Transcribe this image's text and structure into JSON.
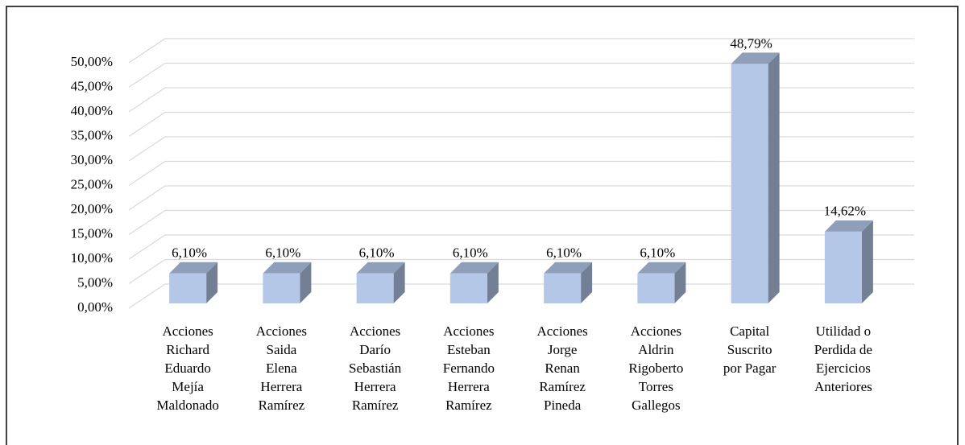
{
  "chart_data": {
    "type": "bar3d",
    "categories": [
      "Acciones\nRichard\nEduardo\nMejía\nMaldonado",
      "Acciones\nSaida\nElena\nHerrera\nRamírez",
      "Acciones\nDarío\nSebastián\nHerrera\nRamírez",
      "Acciones\nEsteban\nFernando\nHerrera\nRamírez",
      "Acciones\nJorge\nRenan\nRamírez\nPineda",
      "Acciones\nAldrin\nRigoberto\nTorres\nGallegos",
      "Capital\nSuscrito\npor Pagar",
      "Utilidad o\nPerdida de\nEjercicios\nAnteriores"
    ],
    "values": [
      6.1,
      6.1,
      6.1,
      6.1,
      6.1,
      6.1,
      48.79,
      14.62
    ],
    "value_labels": [
      "6,10%",
      "6,10%",
      "6,10%",
      "6,10%",
      "6,10%",
      "6,10%",
      "48,79%",
      "14,62%"
    ],
    "color": "#b4c7e7",
    "ylim": [
      0,
      50
    ],
    "yticks": [
      {
        "value": 0,
        "label": "0,00%"
      },
      {
        "value": 5,
        "label": "5,00%"
      },
      {
        "value": 10,
        "label": "10,00%"
      },
      {
        "value": 15,
        "label": "15,00%"
      },
      {
        "value": 20,
        "label": "20,00%"
      },
      {
        "value": 25,
        "label": "25,00%"
      },
      {
        "value": 30,
        "label": "30,00%"
      },
      {
        "value": 35,
        "label": "35,00%"
      },
      {
        "value": 40,
        "label": "40,00%"
      },
      {
        "value": 45,
        "label": "45,00%"
      },
      {
        "value": 50,
        "label": "50,00%"
      }
    ],
    "grid": true
  }
}
